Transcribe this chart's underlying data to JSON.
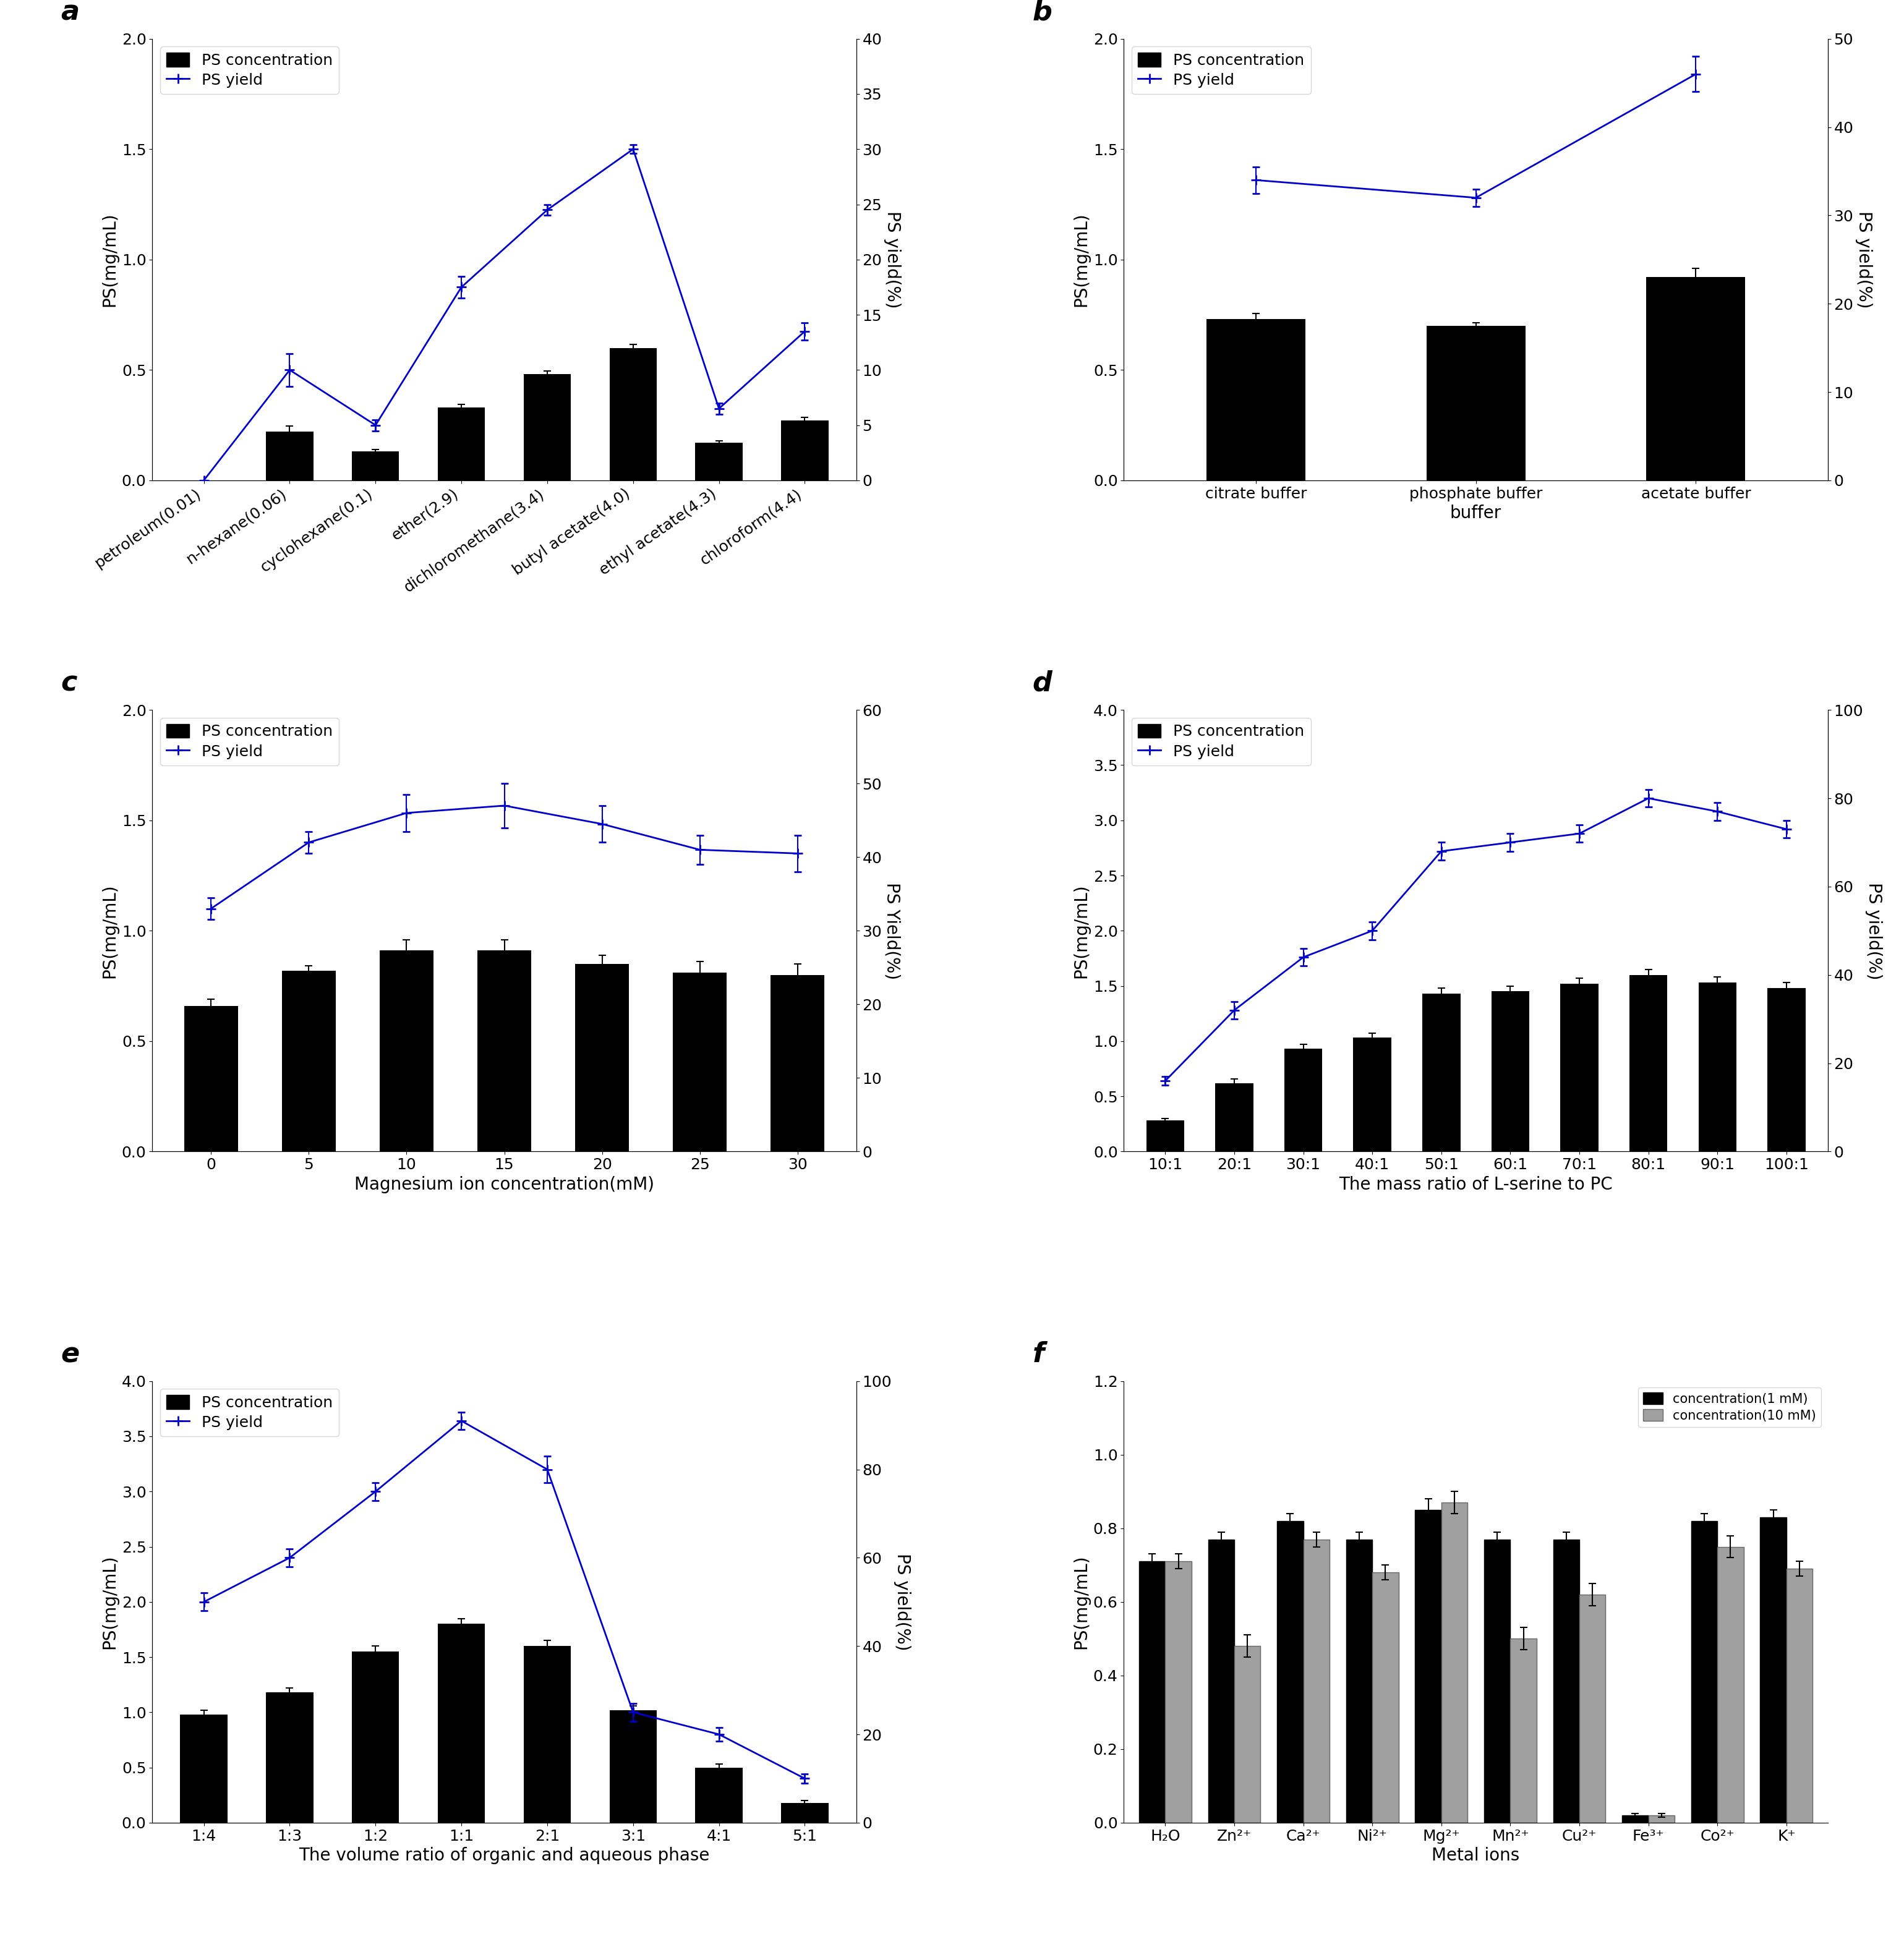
{
  "panel_a": {
    "categories": [
      "petroleum(0.01)",
      "n-hexane(0.06)",
      "cyclohexane(0.1)",
      "ether(2.9)",
      "dichloromethane(3.4)",
      "butyl acetate(4.0)",
      "ethyl acetate(4.3)",
      "chloroform(4.4)"
    ],
    "bar_values": [
      0.0,
      0.22,
      0.13,
      0.33,
      0.48,
      0.6,
      0.17,
      0.27
    ],
    "bar_errors": [
      0.0,
      0.025,
      0.01,
      0.015,
      0.015,
      0.015,
      0.01,
      0.015
    ],
    "line_values": [
      0.0,
      10.0,
      5.0,
      17.5,
      24.5,
      30.0,
      6.5,
      13.5
    ],
    "line_errors": [
      0.0,
      1.5,
      0.5,
      1.0,
      0.5,
      0.4,
      0.5,
      0.8
    ],
    "left_ylim": [
      0,
      2.0
    ],
    "right_ylim": [
      0,
      40
    ],
    "left_yticks": [
      0.0,
      0.5,
      1.0,
      1.5,
      2.0
    ],
    "right_yticks": [
      0,
      5,
      10,
      15,
      20,
      25,
      30,
      35,
      40
    ],
    "ylabel_left": "PS(mg/mL)",
    "ylabel_right": "PS yield(%)",
    "title": "a",
    "label_rotation": 35,
    "label_ha": "right"
  },
  "panel_b": {
    "categories": [
      "citrate buffer",
      "phosphate buffer",
      "acetate buffer"
    ],
    "bar_values": [
      0.73,
      0.7,
      0.92
    ],
    "bar_errors": [
      0.025,
      0.015,
      0.04
    ],
    "line_values": [
      34.0,
      32.0,
      46.0
    ],
    "line_errors": [
      1.5,
      1.0,
      2.0
    ],
    "left_ylim": [
      0,
      2.0
    ],
    "right_ylim": [
      0,
      50
    ],
    "left_yticks": [
      0.0,
      0.5,
      1.0,
      1.5,
      2.0
    ],
    "right_yticks": [
      0,
      10,
      20,
      30,
      40,
      50
    ],
    "ylabel_left": "PS(mg/mL)",
    "ylabel_right": "PS yield(%)",
    "xlabel": "buffer",
    "title": "b",
    "label_rotation": 0,
    "label_ha": "center"
  },
  "panel_c": {
    "categories": [
      "0",
      "5",
      "10",
      "15",
      "20",
      "25",
      "30"
    ],
    "bar_values": [
      0.66,
      0.82,
      0.91,
      0.91,
      0.85,
      0.81,
      0.8
    ],
    "bar_errors": [
      0.03,
      0.02,
      0.05,
      0.05,
      0.04,
      0.05,
      0.05
    ],
    "line_values": [
      33.0,
      42.0,
      46.0,
      47.0,
      44.5,
      41.0,
      40.5
    ],
    "line_errors": [
      1.5,
      1.5,
      2.5,
      3.0,
      2.5,
      2.0,
      2.5
    ],
    "left_ylim": [
      0,
      2.0
    ],
    "right_ylim": [
      0,
      60
    ],
    "left_yticks": [
      0.0,
      0.5,
      1.0,
      1.5,
      2.0
    ],
    "right_yticks": [
      0,
      10,
      20,
      30,
      40,
      50,
      60
    ],
    "ylabel_left": "PS(mg/mL)",
    "ylabel_right": "PS Yield(%)",
    "xlabel": "Magnesium ion concentration(mM)",
    "title": "c",
    "label_rotation": 0,
    "label_ha": "center"
  },
  "panel_d": {
    "categories": [
      "10:1",
      "20:1",
      "30:1",
      "40:1",
      "50:1",
      "60:1",
      "70:1",
      "80:1",
      "90:1",
      "100:1"
    ],
    "bar_values": [
      0.28,
      0.62,
      0.93,
      1.03,
      1.43,
      1.45,
      1.52,
      1.6,
      1.53,
      1.48
    ],
    "bar_errors": [
      0.02,
      0.04,
      0.04,
      0.04,
      0.05,
      0.05,
      0.05,
      0.05,
      0.05,
      0.05
    ],
    "line_values": [
      16.0,
      32.0,
      44.0,
      50.0,
      68.0,
      70.0,
      72.0,
      80.0,
      77.0,
      73.0
    ],
    "line_errors": [
      1.0,
      2.0,
      2.0,
      2.0,
      2.0,
      2.0,
      2.0,
      2.0,
      2.0,
      2.0
    ],
    "left_ylim": [
      0,
      4.0
    ],
    "right_ylim": [
      0,
      100
    ],
    "left_yticks": [
      0.0,
      0.5,
      1.0,
      1.5,
      2.0,
      2.5,
      3.0,
      3.5,
      4.0
    ],
    "right_yticks": [
      0,
      20,
      40,
      60,
      80,
      100
    ],
    "ylabel_left": "PS(mg/mL)",
    "ylabel_right": "PS yield(%)",
    "xlabel": "The mass ratio of L-serine to PC",
    "title": "d",
    "label_rotation": 0,
    "label_ha": "center"
  },
  "panel_e": {
    "categories": [
      "1:4",
      "1:3",
      "1:2",
      "1:1",
      "2:1",
      "3:1",
      "4:1",
      "5:1"
    ],
    "bar_values": [
      0.98,
      1.18,
      1.55,
      1.8,
      1.6,
      1.02,
      0.5,
      0.18
    ],
    "bar_errors": [
      0.04,
      0.04,
      0.05,
      0.05,
      0.05,
      0.04,
      0.03,
      0.02
    ],
    "line_values": [
      50.0,
      60.0,
      75.0,
      91.0,
      80.0,
      25.0,
      20.0,
      10.0
    ],
    "line_errors": [
      2.0,
      2.0,
      2.0,
      2.0,
      3.0,
      2.0,
      1.5,
      1.0
    ],
    "left_ylim": [
      0,
      4.0
    ],
    "right_ylim": [
      0,
      100
    ],
    "left_yticks": [
      0.0,
      0.5,
      1.0,
      1.5,
      2.0,
      2.5,
      3.0,
      3.5,
      4.0
    ],
    "right_yticks": [
      0,
      20,
      40,
      60,
      80,
      100
    ],
    "ylabel_left": "PS(mg/mL)",
    "ylabel_right": "PS yield(%)",
    "xlabel": "The volume ratio of organic and aqueous phase",
    "title": "e",
    "label_rotation": 0,
    "label_ha": "center"
  },
  "panel_f": {
    "categories": [
      "H₂O",
      "Zn²⁺",
      "Ca²⁺",
      "Ni²⁺",
      "Mg²⁺",
      "Mn²⁺",
      "Cu²⁺",
      "Fe³⁺",
      "Co²⁺",
      "K⁺"
    ],
    "bar1_values": [
      0.71,
      0.77,
      0.82,
      0.77,
      0.85,
      0.77,
      0.77,
      0.02,
      0.82,
      0.83
    ],
    "bar1_errors": [
      0.02,
      0.02,
      0.02,
      0.02,
      0.03,
      0.02,
      0.02,
      0.005,
      0.02,
      0.02
    ],
    "bar2_values": [
      0.71,
      0.48,
      0.77,
      0.68,
      0.87,
      0.5,
      0.62,
      0.02,
      0.75,
      0.69
    ],
    "bar2_errors": [
      0.02,
      0.03,
      0.02,
      0.02,
      0.03,
      0.03,
      0.03,
      0.005,
      0.03,
      0.02
    ],
    "left_ylim": [
      0,
      1.2
    ],
    "left_yticks": [
      0.0,
      0.2,
      0.4,
      0.6,
      0.8,
      1.0,
      1.2
    ],
    "ylabel_left": "PS(mg/mL)",
    "xlabel": "Metal ions",
    "title": "f",
    "legend1": "concentration(1 mM)",
    "legend2": "concentration(10 mM)"
  },
  "bar_color": "#000000",
  "bar2_color": "#a0a0a0",
  "line_color": "#0000CC",
  "tick_fontsize": 18,
  "label_fontsize": 20,
  "legend_fontsize": 18,
  "panel_label_fontsize": 32
}
